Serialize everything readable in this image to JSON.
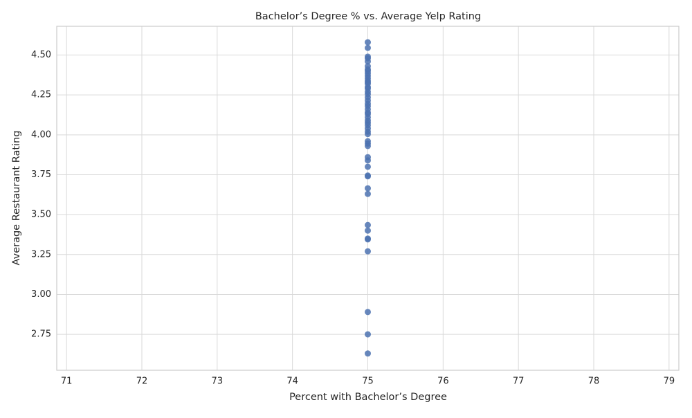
{
  "chart_data": {
    "type": "scatter",
    "title": "Bachelor’s Degree % vs. Average Yelp Rating",
    "x_label": "Percent with Bachelor’s Degree",
    "y_label": "Average Restaurant Rating",
    "x": [
      75,
      75,
      75,
      75,
      75,
      75,
      75,
      75,
      75,
      75,
      75,
      75,
      75,
      75,
      75,
      75,
      75,
      75,
      75,
      75,
      75,
      75,
      75,
      75,
      75,
      75,
      75,
      75,
      75,
      75,
      75,
      75,
      75,
      75,
      75,
      75,
      75,
      75,
      75,
      75,
      75,
      75,
      75,
      75,
      75,
      75,
      75,
      75,
      75,
      75
    ],
    "values": [
      4.58,
      4.545,
      4.49,
      4.48,
      4.46,
      4.43,
      4.41,
      4.4,
      4.385,
      4.37,
      4.355,
      4.34,
      4.33,
      4.32,
      4.3,
      4.29,
      4.27,
      4.255,
      4.235,
      4.215,
      4.195,
      4.18,
      4.16,
      4.14,
      4.13,
      4.11,
      4.09,
      4.075,
      4.06,
      4.04,
      4.02,
      4.005,
      3.96,
      3.945,
      3.93,
      3.86,
      3.84,
      3.8,
      3.745,
      3.74,
      3.665,
      3.63,
      3.435,
      3.4,
      3.35,
      3.345,
      3.27,
      2.89,
      2.75,
      2.63
    ],
    "color": "#4c72b0",
    "xlim": [
      70.87,
      79.13
    ],
    "ylim": [
      2.525,
      4.68
    ],
    "xticks": [
      71,
      72,
      73,
      74,
      75,
      76,
      77,
      78,
      79
    ],
    "yticks": [
      {
        "value": 2.75,
        "label": "2.75"
      },
      {
        "value": 3,
        "label": "3.00"
      },
      3.25,
      {
        "value": 3.5,
        "label": "3.50"
      },
      3.75,
      {
        "value": 4,
        "label": "4.00"
      },
      4.25,
      {
        "value": 4.5,
        "label": "4.50"
      }
    ],
    "grid": true
  }
}
